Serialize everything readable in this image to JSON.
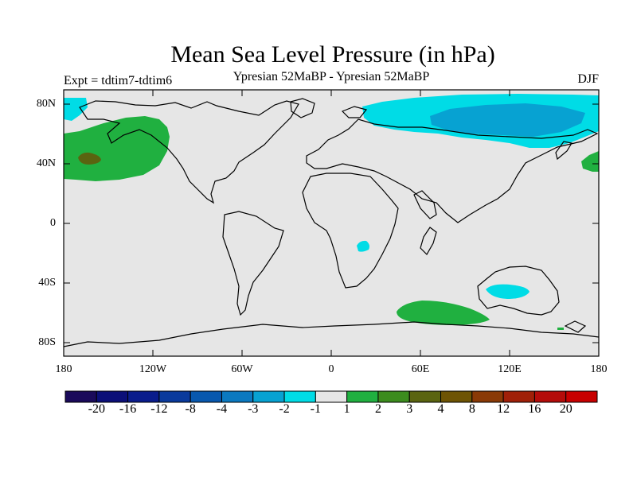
{
  "title": "Mean Sea Level Pressure (in hPa)",
  "subtitle": "Ypresian  52MaBP - Ypresian  52MaBP",
  "experiment": "Expt = tdtim7-tdtim6",
  "season": "DJF",
  "lat_labels": [
    "80N",
    "40N",
    "0",
    "40S",
    "80S"
  ],
  "lon_labels": [
    "180",
    "120W",
    "60W",
    "0",
    "60E",
    "120E",
    "180"
  ],
  "colorbar": {
    "labels": [
      "-20",
      "-16",
      "-12",
      "-8",
      "-4",
      "-3",
      "-2",
      "-1",
      "1",
      "2",
      "3",
      "4",
      "8",
      "12",
      "16",
      "20"
    ],
    "colors": [
      "#1a0a5a",
      "#0b0f78",
      "#0a1c8c",
      "#0a3a9c",
      "#0858ae",
      "#0b79c0",
      "#07a2d2",
      "#00dce6",
      "#e6e6e6",
      "#20b040",
      "#3c8c1e",
      "#5a6410",
      "#6e5404",
      "#8a3a06",
      "#a02008",
      "#b40c0a",
      "#c80000"
    ]
  },
  "colors": {
    "land_outline": "#000000",
    "neutral_fill": "#e6e6e6",
    "negative_light": "#00dce6",
    "negative_mid": "#07a2d2",
    "positive_light": "#20b040",
    "positive_mid": "#5a6410"
  }
}
